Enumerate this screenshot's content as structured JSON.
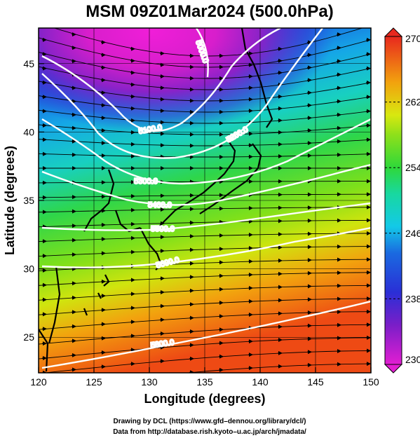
{
  "title": "MSM 09Z01Mar2024 (500.0hPa)",
  "xaxis": {
    "label": "Longitude (degrees)",
    "ticks": [
      "120",
      "125",
      "130",
      "135",
      "140",
      "145",
      "150"
    ],
    "range": [
      120,
      150
    ]
  },
  "yaxis": {
    "label": "Latitude  (degrees)",
    "ticks": [
      "25",
      "30",
      "35",
      "40",
      "45"
    ],
    "range": [
      22.4,
      47.6
    ]
  },
  "colorbar": {
    "ticks": [
      "230",
      "238",
      "246",
      "254",
      "262",
      "270"
    ],
    "min": 230,
    "max": 270
  },
  "contours": [
    {
      "label": "5000.0",
      "value": 5000
    },
    {
      "label": "5100.0",
      "value": 5100
    },
    {
      "label": "5200.0",
      "value": 5200
    },
    {
      "label": "5300.0",
      "value": 5300
    },
    {
      "label": "5400.0",
      "value": 5400
    },
    {
      "label": "5500.0",
      "value": 5500
    },
    {
      "label": "5600.0",
      "value": 5600
    },
    {
      "label": "5800.0",
      "value": 5800
    }
  ],
  "footer": {
    "line1": "Drawing by DCL (https://www.gfd–dennou.org/library/dcl/)",
    "line2": "Data from http://database.rish.kyoto–u.ac.jp/arch/jmadata/"
  },
  "palette": {
    "magenta": "#e21ed2",
    "purple": "#7a1ec8",
    "blue": "#1e32d8",
    "cyan": "#13c9e8",
    "green": "#2fd83a",
    "yellow": "#d8e810",
    "orange": "#f2780e",
    "red": "#e8281e"
  }
}
